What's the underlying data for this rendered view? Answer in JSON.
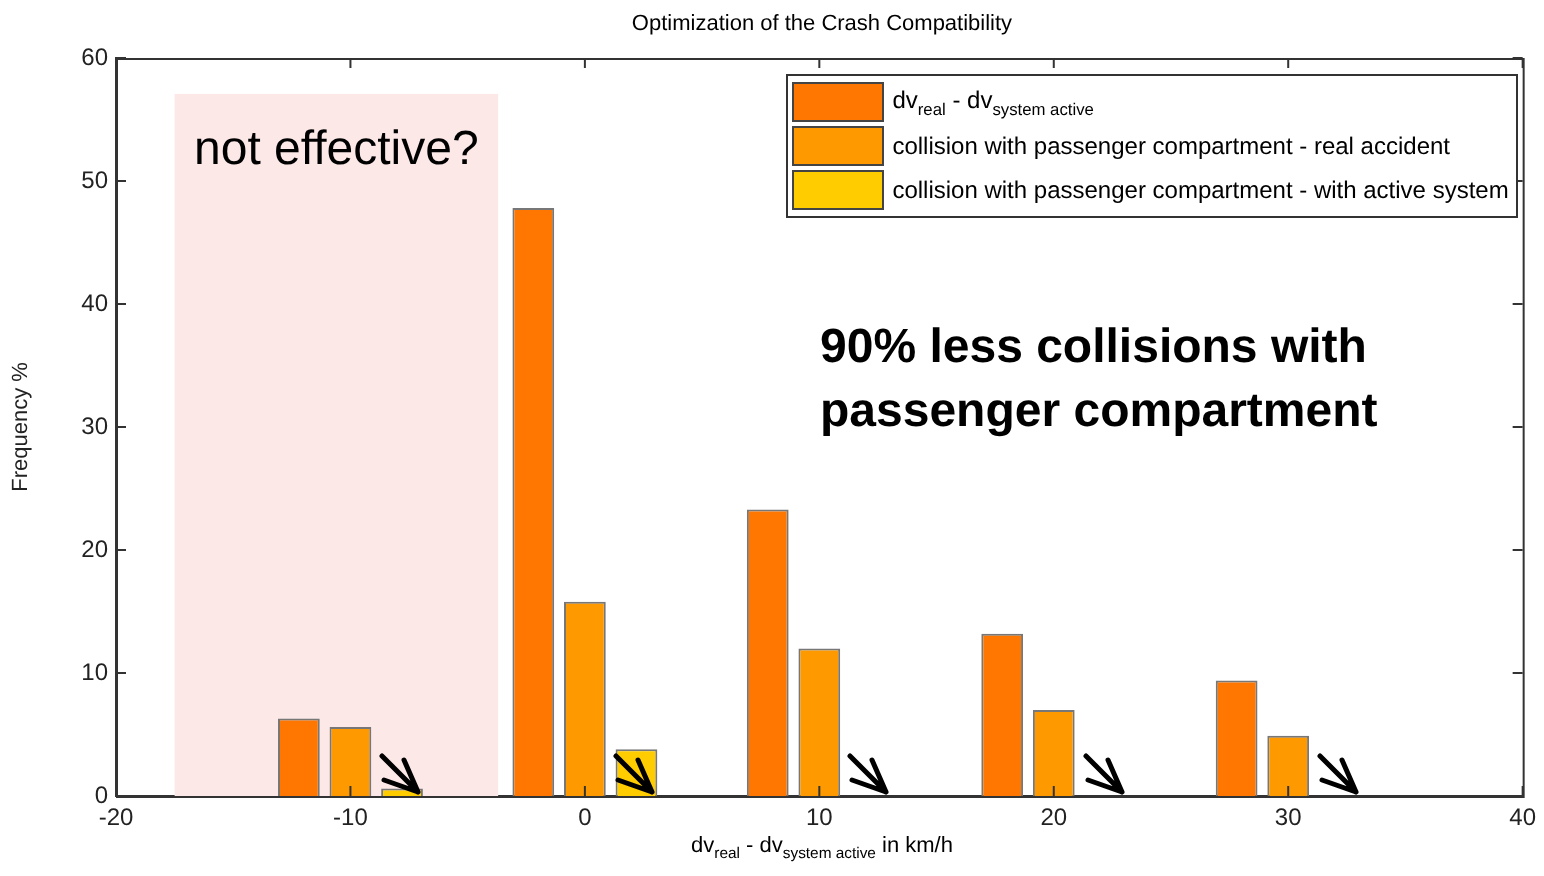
{
  "chart_data": {
    "type": "bar",
    "title": "Optimization of the Crash Compatibility",
    "xlabel": "dv$_{real}$ - dv$_{system active}$ in km/h",
    "ylabel": "Frequency %",
    "x": [
      -10,
      0,
      10,
      20,
      30
    ],
    "series": [
      {
        "name": "dv$_{real}$ - dv$_{system active}$",
        "color": "#ff7700",
        "values": [
          6.3,
          47.8,
          23.3,
          13.2,
          9.4
        ]
      },
      {
        "name": "collision with passenger compartment - real accident",
        "color": "#ff9900",
        "values": [
          5.6,
          15.8,
          12.0,
          7.0,
          4.9
        ]
      },
      {
        "name": "collision with passenger compartment - with active system",
        "color": "#ffcc00",
        "values": [
          0.6,
          3.8,
          0,
          0,
          0
        ]
      }
    ],
    "xlim": [
      -20,
      40
    ],
    "xticks": [
      -20,
      -10,
      0,
      10,
      20,
      30,
      40
    ],
    "ylim": [
      0,
      60
    ],
    "yticks": [
      0,
      10,
      20,
      30,
      40,
      50,
      60
    ],
    "bands": [
      {
        "axis": "x",
        "from": -17.5,
        "to": -3.7,
        "label": "not effective?",
        "color": "#fde8e8"
      }
    ],
    "annotations": [
      "90% less collisions with passenger compartment"
    ],
    "grid": false,
    "legend": "top right"
  }
}
